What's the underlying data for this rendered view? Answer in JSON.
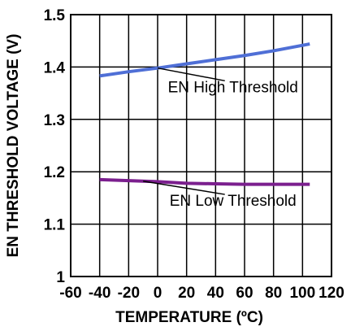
{
  "chart_data": {
    "type": "line",
    "title": "",
    "xlabel": "TEMPERATURE (ºC)",
    "ylabel": "EN THRESHOLD VOLTAGE (V)",
    "xlim": [
      -60,
      120
    ],
    "ylim": [
      1.0,
      1.5
    ],
    "xticks": [
      -60,
      -40,
      -20,
      0,
      20,
      40,
      60,
      80,
      100,
      120
    ],
    "yticks": [
      1,
      1.1,
      1.2,
      1.3,
      1.4,
      1.5
    ],
    "xtick_labels": [
      "-60",
      "-40",
      "-20",
      "0",
      "20",
      "40",
      "60",
      "80",
      "100",
      "120"
    ],
    "ytick_labels": [
      "1",
      "1.1",
      "1.2",
      "1.3",
      "1.4",
      "1.5"
    ],
    "grid": true,
    "series": [
      {
        "name": "EN High Threshold",
        "color": "#4f6fd6",
        "x": [
          -40,
          -20,
          0,
          20,
          40,
          60,
          80,
          105
        ],
        "y": [
          1.383,
          1.391,
          1.398,
          1.406,
          1.414,
          1.422,
          1.431,
          1.444
        ]
      },
      {
        "name": "EN Low Threshold",
        "color": "#7b1f8e",
        "x": [
          -40,
          -20,
          0,
          20,
          40,
          60,
          80,
          105
        ],
        "y": [
          1.185,
          1.183,
          1.181,
          1.178,
          1.177,
          1.176,
          1.176,
          1.176
        ]
      }
    ],
    "annotations": [
      {
        "text": "EN High Threshold",
        "series": 0,
        "x": 0,
        "y": 1.398,
        "label_x": 52,
        "label_y": 1.352
      },
      {
        "text": "EN Low Threshold",
        "series": 1,
        "x": -10,
        "y": 1.182,
        "label_x": 52,
        "label_y": 1.135
      }
    ]
  }
}
